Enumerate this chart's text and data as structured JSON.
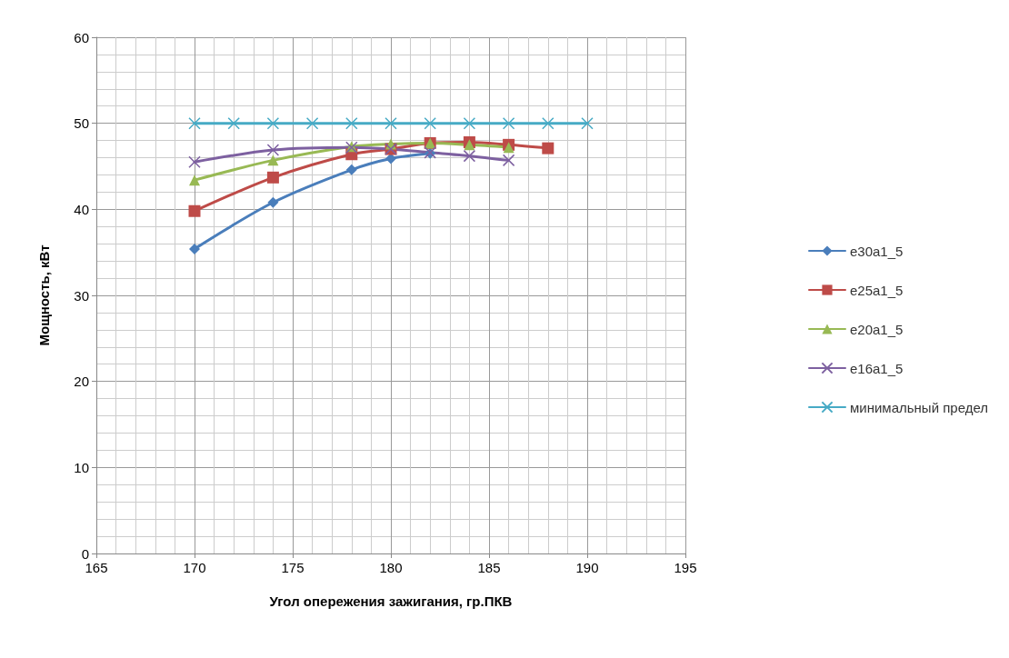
{
  "chart_data": {
    "type": "line",
    "xlabel": "Угол опережения зажигания, гр.ПКВ",
    "ylabel": "Мощность, кВт",
    "xlim": [
      165,
      195
    ],
    "xticks": [
      165,
      170,
      175,
      180,
      185,
      190,
      195
    ],
    "ylim": [
      0,
      60
    ],
    "yticks": [
      0,
      10,
      20,
      30,
      40,
      50,
      60
    ],
    "grid": true,
    "legend": "right",
    "series": [
      {
        "name": "e30a1_5",
        "color": "#4a7ebb",
        "marker": "diamond",
        "x": [
          170,
          174,
          178,
          180,
          182
        ],
        "values": [
          35.4,
          40.8,
          44.6,
          45.9,
          46.5
        ]
      },
      {
        "name": "e25a1_5",
        "color": "#be4b48",
        "marker": "square",
        "x": [
          170,
          174,
          178,
          180,
          182,
          184,
          186,
          188
        ],
        "values": [
          39.8,
          43.7,
          46.4,
          47.0,
          47.7,
          47.8,
          47.5,
          47.1
        ]
      },
      {
        "name": "e20a1_5",
        "color": "#98b954",
        "marker": "triangle",
        "x": [
          170,
          174,
          178,
          180,
          182,
          184,
          186
        ],
        "values": [
          43.4,
          45.7,
          47.3,
          47.6,
          47.7,
          47.5,
          47.2
        ]
      },
      {
        "name": "e16a1_5",
        "color": "#7d60a0",
        "marker": "cross",
        "x": [
          170,
          174,
          178,
          180,
          182,
          184,
          186
        ],
        "values": [
          45.5,
          46.9,
          47.2,
          47.0,
          46.6,
          46.2,
          45.7
        ]
      },
      {
        "name": "минимальный предел",
        "color": "#46aac5",
        "marker": "cross",
        "x": [
          170,
          172,
          174,
          176,
          178,
          180,
          182,
          184,
          186,
          188,
          190
        ],
        "values": [
          50,
          50,
          50,
          50,
          50,
          50,
          50,
          50,
          50,
          50,
          50
        ]
      }
    ]
  }
}
